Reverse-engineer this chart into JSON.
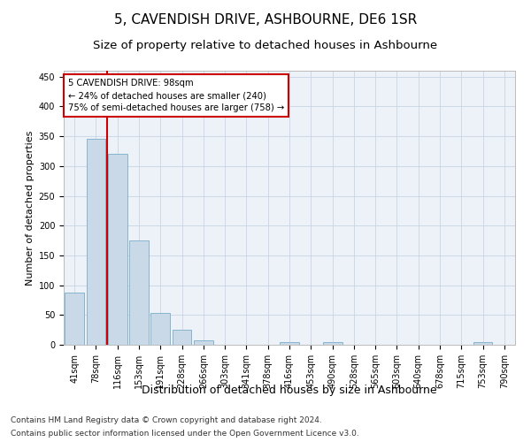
{
  "title": "5, CAVENDISH DRIVE, ASHBOURNE, DE6 1SR",
  "subtitle": "Size of property relative to detached houses in Ashbourne",
  "xlabel": "Distribution of detached houses by size in Ashbourne",
  "ylabel": "Number of detached properties",
  "bar_labels": [
    "41sqm",
    "78sqm",
    "116sqm",
    "153sqm",
    "191sqm",
    "228sqm",
    "266sqm",
    "303sqm",
    "341sqm",
    "378sqm",
    "416sqm",
    "453sqm",
    "490sqm",
    "528sqm",
    "565sqm",
    "603sqm",
    "640sqm",
    "678sqm",
    "715sqm",
    "753sqm",
    "790sqm"
  ],
  "bar_heights": [
    88,
    346,
    320,
    175,
    53,
    25,
    8,
    0,
    0,
    0,
    4,
    0,
    5,
    0,
    0,
    0,
    0,
    0,
    0,
    4,
    0
  ],
  "bar_color": "#c9d9e8",
  "bar_edgecolor": "#7aaec8",
  "annotation_text": "5 CAVENDISH DRIVE: 98sqm\n← 24% of detached houses are smaller (240)\n75% of semi-detached houses are larger (758) →",
  "annotation_box_color": "#ffffff",
  "annotation_box_edgecolor": "#cc0000",
  "vline_color": "#cc0000",
  "footer_line1": "Contains HM Land Registry data © Crown copyright and database right 2024.",
  "footer_line2": "Contains public sector information licensed under the Open Government Licence v3.0.",
  "ylim": [
    0,
    460
  ],
  "plot_background": "#edf2f9",
  "grid_color": "#c8d4e4",
  "title_fontsize": 11,
  "subtitle_fontsize": 9.5,
  "ylabel_fontsize": 8,
  "xlabel_fontsize": 9,
  "tick_fontsize": 7,
  "footer_fontsize": 6.5
}
